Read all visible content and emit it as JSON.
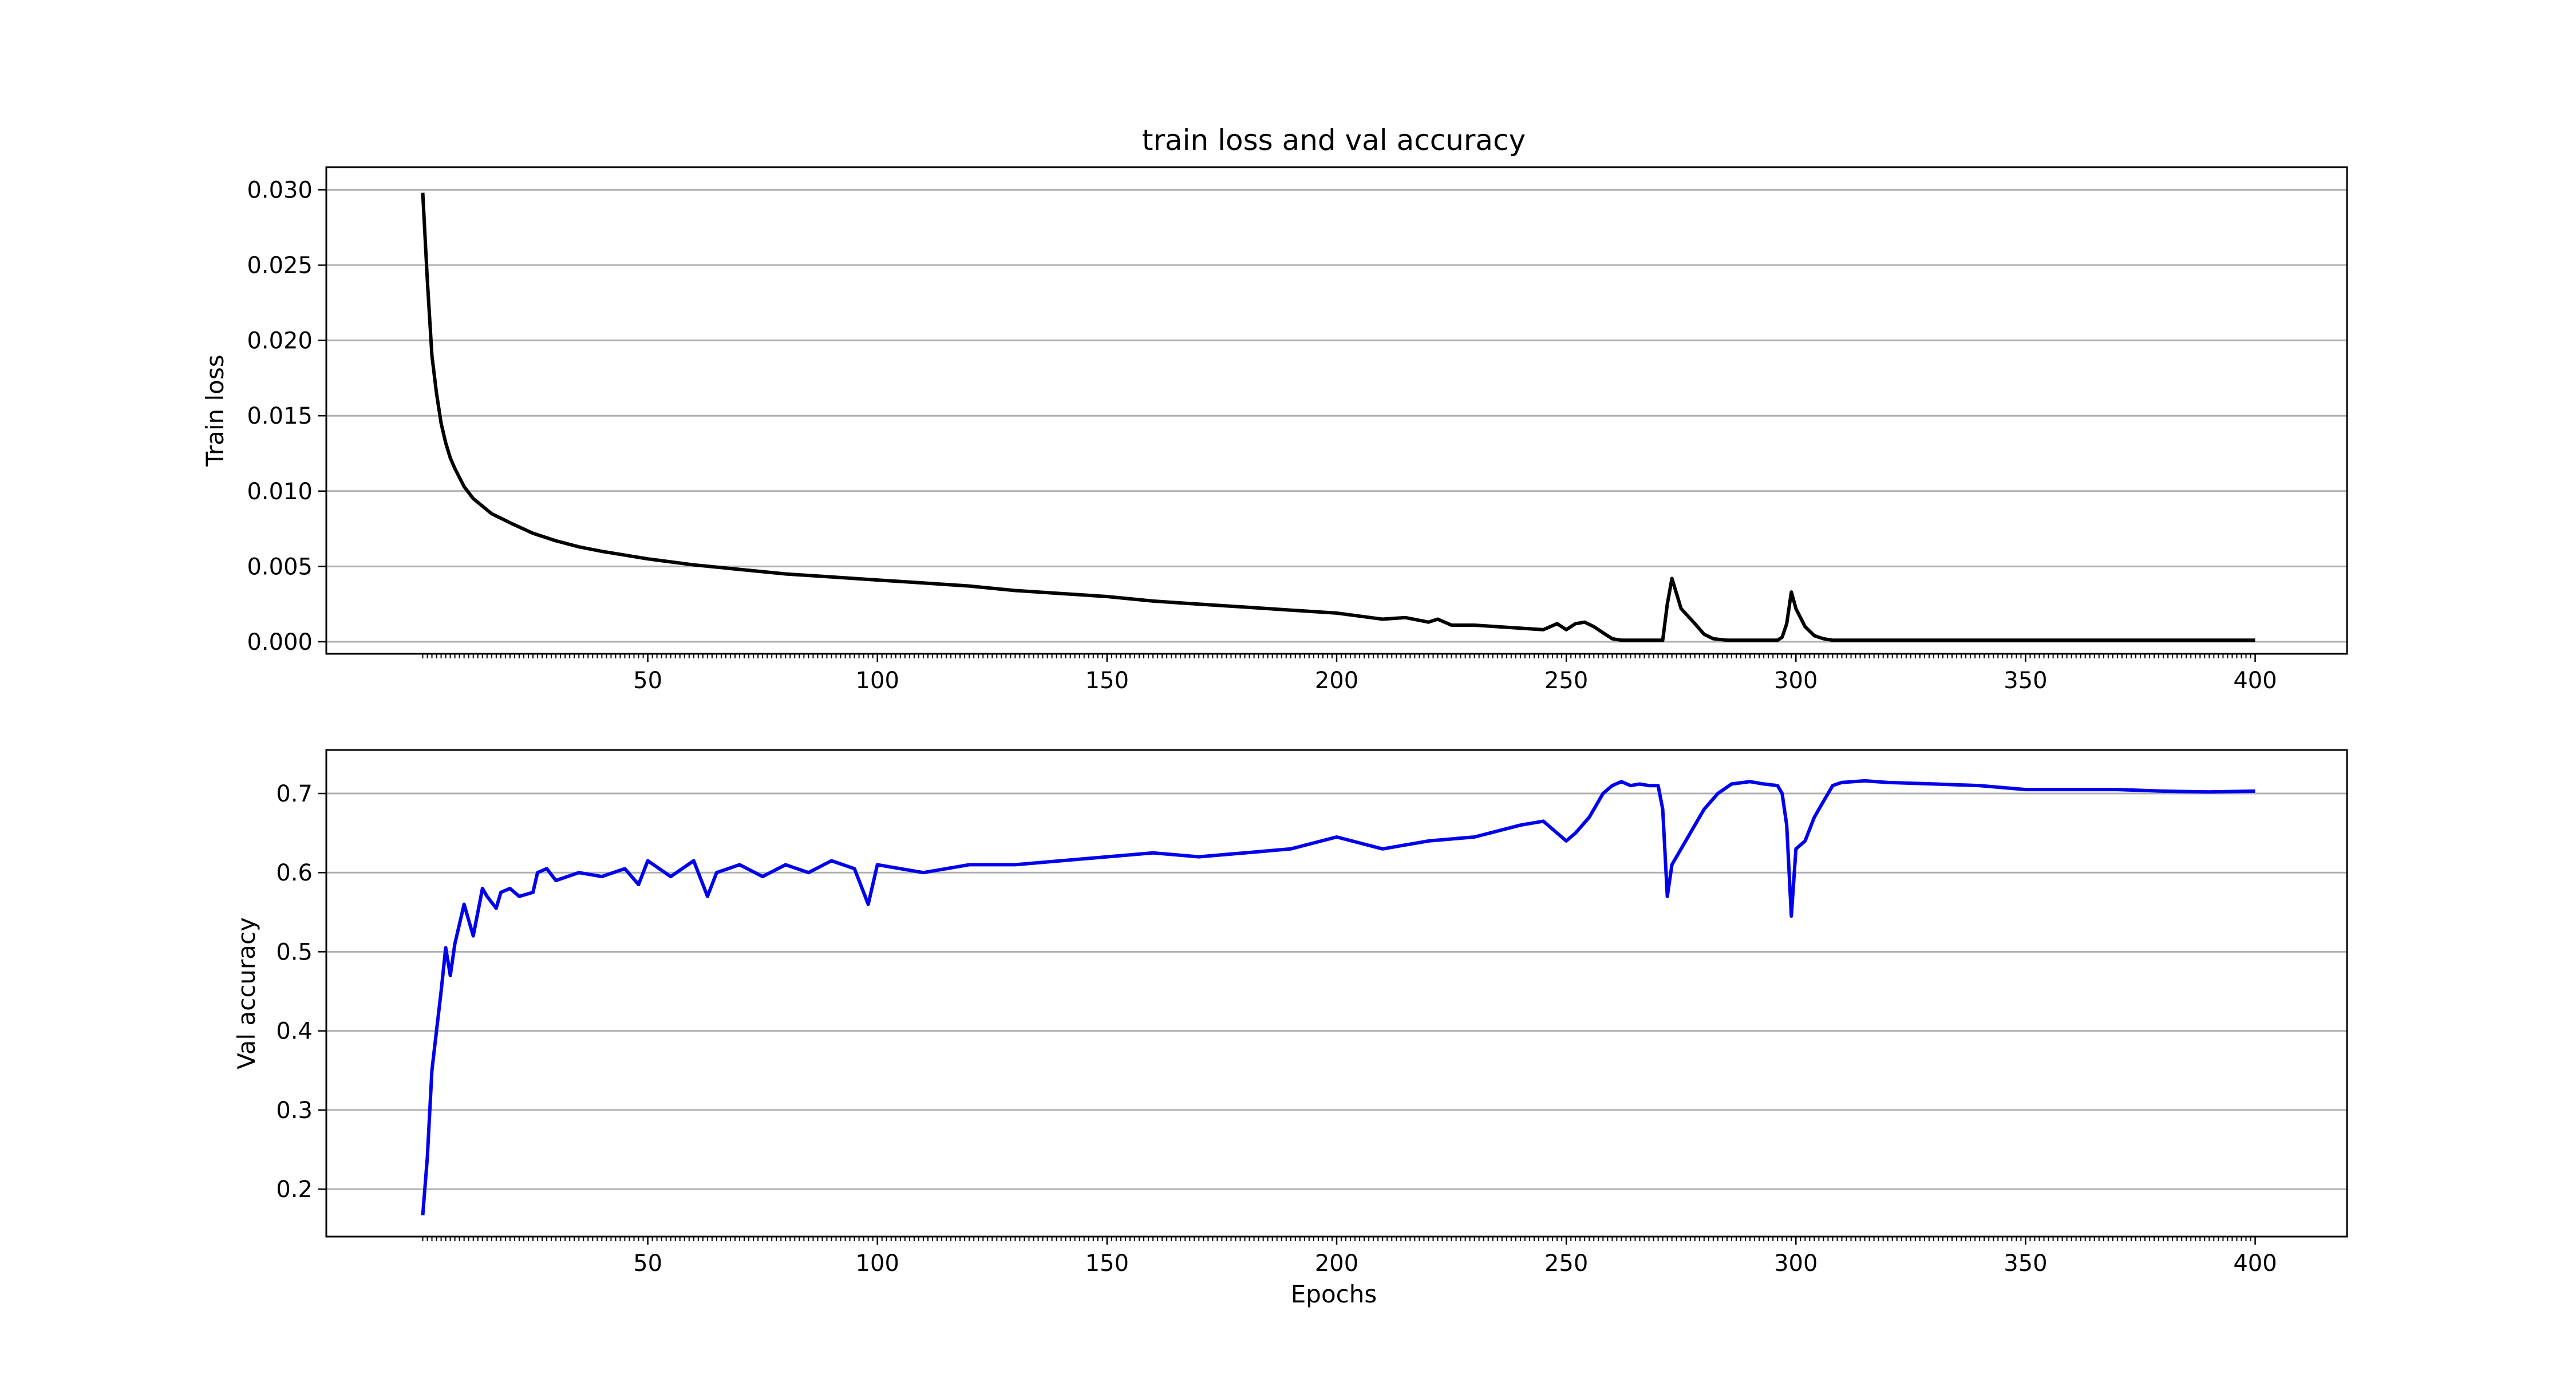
{
  "chart_data": {
    "type": "line",
    "title": "train loss and val accuracy",
    "xlabel": "Epochs",
    "xlim": [
      -20,
      420
    ],
    "xticks": [
      50,
      100,
      150,
      200,
      250,
      300,
      350,
      400
    ],
    "grid": "horizontal",
    "subplots": [
      {
        "ylabel": "Train loss",
        "ylim": [
          -0.0008,
          0.0315
        ],
        "yticks": [
          "0.000",
          "0.005",
          "0.010",
          "0.015",
          "0.020",
          "0.025",
          "0.030"
        ],
        "series": {
          "color": "#000000",
          "x": [
            1,
            2,
            3,
            4,
            5,
            6,
            7,
            8,
            10,
            12,
            14,
            16,
            18,
            20,
            25,
            30,
            35,
            40,
            50,
            60,
            70,
            80,
            90,
            100,
            110,
            120,
            130,
            140,
            150,
            160,
            170,
            180,
            190,
            200,
            205,
            210,
            215,
            220,
            222,
            225,
            230,
            235,
            240,
            245,
            248,
            250,
            252,
            254,
            256,
            258,
            260,
            262,
            265,
            270,
            271,
            272,
            273,
            275,
            278,
            280,
            282,
            285,
            290,
            296,
            297,
            298,
            299,
            300,
            302,
            304,
            306,
            308,
            310,
            320,
            350,
            400
          ],
          "y": [
            0.0298,
            0.024,
            0.019,
            0.0165,
            0.0145,
            0.0132,
            0.0122,
            0.0115,
            0.0103,
            0.0095,
            0.009,
            0.0085,
            0.0082,
            0.0079,
            0.0072,
            0.0067,
            0.0063,
            0.006,
            0.0055,
            0.0051,
            0.0048,
            0.0045,
            0.0043,
            0.0041,
            0.0039,
            0.0037,
            0.0034,
            0.0032,
            0.003,
            0.0027,
            0.0025,
            0.0023,
            0.0021,
            0.0019,
            0.0017,
            0.0015,
            0.0016,
            0.0013,
            0.0015,
            0.0011,
            0.0011,
            0.001,
            0.0009,
            0.0008,
            0.0012,
            0.0008,
            0.0012,
            0.0013,
            0.001,
            0.0006,
            0.0002,
            0.0001,
            0.0001,
            0.0001,
            0.0001,
            0.0025,
            0.0042,
            0.0022,
            0.0012,
            0.0005,
            0.0002,
            0.0001,
            0.0001,
            0.0001,
            0.0003,
            0.0012,
            0.0033,
            0.0022,
            0.001,
            0.0004,
            0.0002,
            0.0001,
            0.0001,
            0.0001,
            0.0001,
            0.0001
          ]
        }
      },
      {
        "ylabel": "Val accuracy",
        "ylim": [
          0.14,
          0.755
        ],
        "yticks": [
          "0.2",
          "0.3",
          "0.4",
          "0.5",
          "0.6",
          "0.7"
        ],
        "series": {
          "color": "#0000ee",
          "x": [
            1,
            2,
            3,
            4,
            5,
            6,
            7,
            8,
            10,
            12,
            14,
            15,
            17,
            18,
            20,
            22,
            25,
            26,
            28,
            30,
            35,
            40,
            45,
            48,
            50,
            55,
            60,
            63,
            65,
            70,
            75,
            80,
            85,
            90,
            95,
            98,
            100,
            105,
            110,
            120,
            130,
            140,
            150,
            160,
            170,
            180,
            190,
            200,
            210,
            220,
            230,
            240,
            245,
            250,
            252,
            255,
            258,
            260,
            262,
            264,
            266,
            268,
            270,
            271,
            272,
            273,
            275,
            278,
            280,
            283,
            286,
            290,
            293,
            296,
            297,
            298,
            299,
            300,
            302,
            304,
            306,
            308,
            310,
            315,
            320,
            330,
            340,
            350,
            360,
            370,
            380,
            390,
            400
          ],
          "y": [
            0.167,
            0.24,
            0.35,
            0.4,
            0.45,
            0.505,
            0.47,
            0.51,
            0.56,
            0.52,
            0.58,
            0.57,
            0.555,
            0.575,
            0.58,
            0.57,
            0.575,
            0.6,
            0.605,
            0.59,
            0.6,
            0.595,
            0.605,
            0.585,
            0.615,
            0.595,
            0.615,
            0.57,
            0.6,
            0.61,
            0.595,
            0.61,
            0.6,
            0.615,
            0.605,
            0.56,
            0.61,
            0.605,
            0.6,
            0.61,
            0.61,
            0.615,
            0.62,
            0.625,
            0.62,
            0.625,
            0.63,
            0.645,
            0.63,
            0.64,
            0.645,
            0.66,
            0.665,
            0.64,
            0.65,
            0.67,
            0.7,
            0.71,
            0.715,
            0.71,
            0.712,
            0.71,
            0.71,
            0.68,
            0.57,
            0.61,
            0.63,
            0.66,
            0.68,
            0.7,
            0.712,
            0.715,
            0.712,
            0.71,
            0.7,
            0.66,
            0.545,
            0.63,
            0.64,
            0.67,
            0.69,
            0.71,
            0.714,
            0.716,
            0.714,
            0.712,
            0.71,
            0.705,
            0.705,
            0.705,
            0.703,
            0.702,
            0.703
          ]
        }
      }
    ]
  }
}
